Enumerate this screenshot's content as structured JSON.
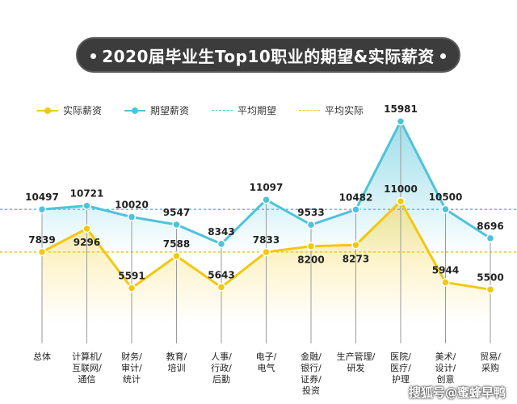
{
  "title": "2020届毕业生Top10职业的期望&实际薪资",
  "legend": [
    {
      "label": "实际薪资",
      "color": "#f2c80f",
      "kind": "line-marker"
    },
    {
      "label": "期望薪资",
      "color": "#4dc3d9",
      "kind": "line-marker"
    },
    {
      "label": "平均期望",
      "color": "#4dc3d9",
      "kind": "dashed"
    },
    {
      "label": "平均实际",
      "color": "#f2c80f",
      "kind": "dashed"
    }
  ],
  "watermark": "搜狐号@蜜蜂早鸭",
  "chart_data": {
    "type": "line",
    "title": "2020届毕业生Top10职业的期望&实际薪资",
    "categories": [
      "总体",
      "计算机/互联网/通信",
      "财务/审计/统计",
      "教育/培训",
      "人事/行政/后勤",
      "电子/电气",
      "金融/银行/证券/投资",
      "生产管理/研发",
      "医院/医疗/护理",
      "美术/设计/创意",
      "贸易/采购"
    ],
    "category_lines": [
      [
        "总体"
      ],
      [
        "计算机/",
        "互联网/",
        "通信"
      ],
      [
        "财务/",
        "审计/",
        "统计"
      ],
      [
        "教育/",
        "培训"
      ],
      [
        "人事/",
        "行政/",
        "后勤"
      ],
      [
        "电子/",
        "电气"
      ],
      [
        "金融/",
        "银行/",
        "证券/",
        "投资"
      ],
      [
        "生产管理/",
        "研发"
      ],
      [
        "医院/",
        "医疗/",
        "护理"
      ],
      [
        "美术/",
        "设计/",
        "创意"
      ],
      [
        "贸易/",
        "采购"
      ]
    ],
    "series": [
      {
        "name": "期望薪资",
        "values": [
          10497,
          10721,
          10020,
          9547,
          8343,
          11097,
          9533,
          10482,
          15981,
          10500,
          8696
        ],
        "color": "#4dc3d9"
      },
      {
        "name": "实际薪资",
        "values": [
          7839,
          9296,
          5591,
          7588,
          5643,
          7833,
          8200,
          8273,
          11000,
          5944,
          5500
        ],
        "color": "#f2c80f"
      }
    ],
    "reference_lines": [
      {
        "name": "平均期望",
        "value": 10497,
        "color": "#4dc3d9",
        "style": "dashed"
      },
      {
        "name": "平均实际",
        "value": 7839,
        "color": "#f2c80f",
        "style": "dashed"
      }
    ],
    "label_positions": {
      "期望薪资": [
        "above",
        "above",
        "above",
        "above",
        "above",
        "above",
        "above",
        "above",
        "above",
        "above",
        "above"
      ],
      "实际薪资": [
        "above",
        "below",
        "above",
        "above",
        "above",
        "above",
        "below",
        "below",
        "above",
        "above",
        "above"
      ]
    },
    "ylim": [
      3400,
      17000
    ],
    "grid": false,
    "legend_position": "top-left"
  }
}
